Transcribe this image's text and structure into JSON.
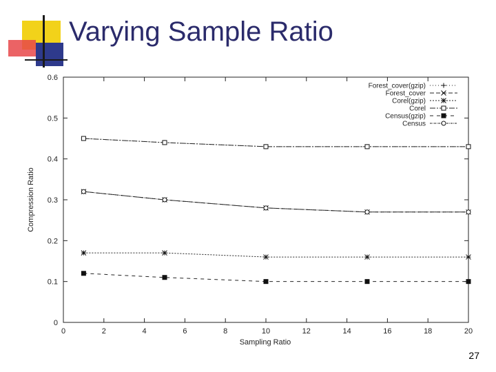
{
  "slide": {
    "title": "Varying Sample Ratio",
    "page_number": "27"
  },
  "colors": {
    "title": "#2b2b6b",
    "deco_yellow": "#f2d21a",
    "deco_red": "#e8484a",
    "deco_blue": "#2e3a8c",
    "deco_black": "#1a1a1a"
  },
  "chart_data": {
    "type": "line",
    "xlabel": "Sampling Ratio",
    "ylabel": "Compression Ratio",
    "xlim": [
      0,
      20
    ],
    "ylim": [
      0,
      0.6
    ],
    "xticks": [
      "0",
      "2",
      "4",
      "6",
      "8",
      "10",
      "12",
      "14",
      "16",
      "18",
      "20"
    ],
    "yticks": [
      "0",
      "0.1",
      "0.2",
      "0.3",
      "0.4",
      "0.5",
      "0.6"
    ],
    "legend_position": "top-right",
    "series": [
      {
        "name": "Forest_cover(gzip)",
        "marker": "plus",
        "dash": "1,3",
        "points": [
          [
            1,
            0.45
          ],
          [
            5,
            0.44
          ],
          [
            10,
            0.43
          ],
          [
            15,
            0.43
          ],
          [
            20,
            0.43
          ]
        ]
      },
      {
        "name": "Forest_cover",
        "marker": "x",
        "dash": "6,3",
        "points": [
          [
            1,
            0.32
          ],
          [
            5,
            0.3
          ],
          [
            10,
            0.28
          ],
          [
            15,
            0.27
          ],
          [
            20,
            0.27
          ]
        ]
      },
      {
        "name": "Corel(gzip)",
        "marker": "star",
        "dash": "2,2",
        "points": [
          [
            1,
            0.17
          ],
          [
            5,
            0.17
          ],
          [
            10,
            0.16
          ],
          [
            15,
            0.16
          ],
          [
            20,
            0.16
          ]
        ]
      },
      {
        "name": "Corel",
        "marker": "square-open",
        "dash": "8,2,2,2",
        "points": [
          [
            1,
            0.45
          ],
          [
            5,
            0.44
          ],
          [
            10,
            0.43
          ],
          [
            15,
            0.43
          ],
          [
            20,
            0.43
          ]
        ]
      },
      {
        "name": "Census(gzip)",
        "marker": "square-filled",
        "dash": "5,5",
        "points": [
          [
            1,
            0.12
          ],
          [
            5,
            0.11
          ],
          [
            10,
            0.1
          ],
          [
            15,
            0.1
          ],
          [
            20,
            0.1
          ]
        ]
      },
      {
        "name": "Census",
        "marker": "circle-open",
        "dash": "3,1,1,1",
        "points": [
          [
            1,
            0.32
          ],
          [
            5,
            0.3
          ],
          [
            10,
            0.28
          ],
          [
            15,
            0.27
          ],
          [
            20,
            0.27
          ]
        ]
      }
    ]
  }
}
